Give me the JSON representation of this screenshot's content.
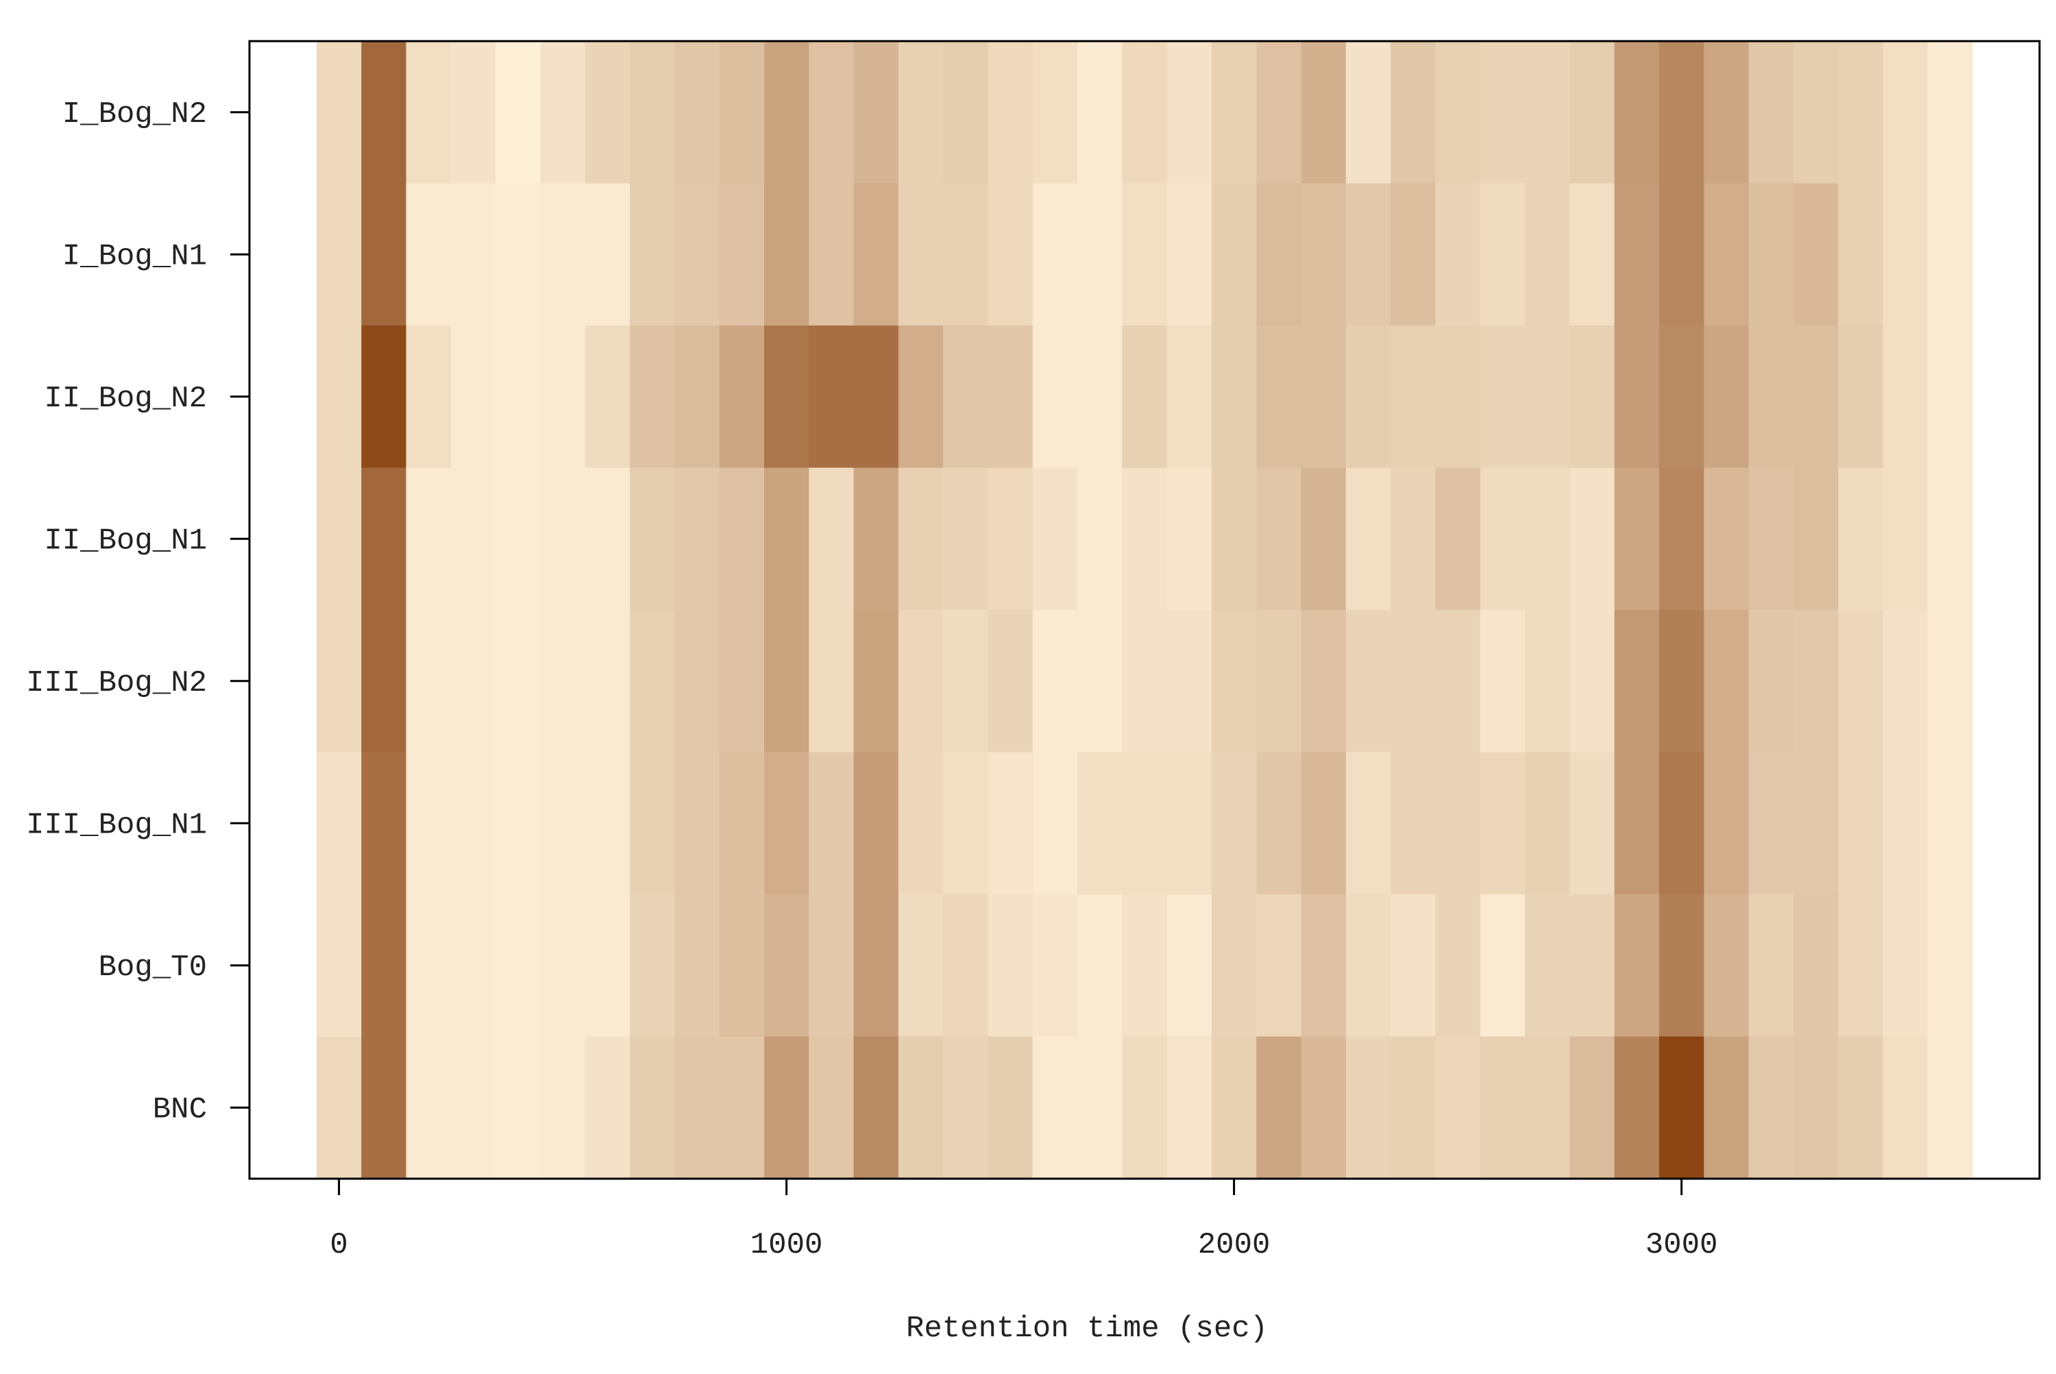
{
  "chart_data": {
    "type": "heatmap",
    "xlabel": "Retention time (sec)",
    "ylabel": "",
    "xlim": [
      -200,
      3800
    ],
    "x_ticks": [
      0,
      1000,
      2000,
      3000
    ],
    "x_tick_labels": [
      "0",
      "1000",
      "2000",
      "3000"
    ],
    "grid": false,
    "legend": "none",
    "bin_width": 100,
    "x_centers": [
      0,
      100,
      200,
      300,
      400,
      500,
      600,
      700,
      800,
      900,
      1000,
      1100,
      1200,
      1300,
      1400,
      1500,
      1600,
      1700,
      1800,
      1900,
      2000,
      2100,
      2200,
      2300,
      2400,
      2500,
      2600,
      2700,
      2800,
      2900,
      3000,
      3100,
      3200,
      3300,
      3400,
      3500,
      3600
    ],
    "rows": [
      "I_Bog_N2",
      "I_Bog_N1",
      "II_Bog_N2",
      "II_Bog_N1",
      "III_Bog_N2",
      "III_Bog_N1",
      "Bog_T0",
      "BNC"
    ],
    "color_low": "#fff3db",
    "color_high": "#8b4513",
    "values": [
      [
        0.15,
        0.8,
        0.12,
        0.1,
        0.02,
        0.1,
        0.18,
        0.22,
        0.26,
        0.3,
        0.46,
        0.28,
        0.36,
        0.2,
        0.22,
        0.15,
        0.12,
        0.05,
        0.15,
        0.1,
        0.2,
        0.28,
        0.38,
        0.1,
        0.26,
        0.2,
        0.18,
        0.18,
        0.22,
        0.52,
        0.62,
        0.44,
        0.26,
        0.22,
        0.2,
        0.12,
        0.05
      ],
      [
        0.15,
        0.8,
        0.05,
        0.05,
        0.03,
        0.05,
        0.05,
        0.22,
        0.24,
        0.28,
        0.46,
        0.28,
        0.4,
        0.2,
        0.2,
        0.15,
        0.05,
        0.05,
        0.12,
        0.08,
        0.22,
        0.32,
        0.3,
        0.24,
        0.3,
        0.18,
        0.14,
        0.18,
        0.12,
        0.5,
        0.62,
        0.4,
        0.3,
        0.34,
        0.2,
        0.12,
        0.05
      ],
      [
        0.15,
        0.97,
        0.12,
        0.05,
        0.03,
        0.05,
        0.14,
        0.28,
        0.32,
        0.44,
        0.72,
        0.76,
        0.76,
        0.4,
        0.26,
        0.26,
        0.05,
        0.05,
        0.2,
        0.12,
        0.22,
        0.3,
        0.3,
        0.22,
        0.2,
        0.2,
        0.18,
        0.18,
        0.2,
        0.5,
        0.6,
        0.44,
        0.3,
        0.3,
        0.22,
        0.12,
        0.05
      ],
      [
        0.15,
        0.8,
        0.05,
        0.05,
        0.03,
        0.05,
        0.05,
        0.22,
        0.24,
        0.28,
        0.46,
        0.14,
        0.44,
        0.2,
        0.18,
        0.15,
        0.1,
        0.05,
        0.1,
        0.08,
        0.22,
        0.26,
        0.36,
        0.12,
        0.18,
        0.28,
        0.14,
        0.14,
        0.1,
        0.44,
        0.62,
        0.34,
        0.28,
        0.3,
        0.14,
        0.12,
        0.05
      ],
      [
        0.15,
        0.8,
        0.05,
        0.05,
        0.03,
        0.05,
        0.05,
        0.2,
        0.24,
        0.28,
        0.46,
        0.14,
        0.46,
        0.16,
        0.14,
        0.18,
        0.05,
        0.05,
        0.1,
        0.1,
        0.2,
        0.22,
        0.28,
        0.18,
        0.18,
        0.18,
        0.08,
        0.14,
        0.1,
        0.52,
        0.66,
        0.4,
        0.26,
        0.24,
        0.16,
        0.1,
        0.05
      ],
      [
        0.1,
        0.76,
        0.05,
        0.05,
        0.03,
        0.05,
        0.05,
        0.2,
        0.24,
        0.3,
        0.4,
        0.24,
        0.5,
        0.16,
        0.12,
        0.08,
        0.05,
        0.12,
        0.12,
        0.12,
        0.18,
        0.26,
        0.34,
        0.12,
        0.18,
        0.18,
        0.16,
        0.2,
        0.14,
        0.52,
        0.7,
        0.4,
        0.24,
        0.24,
        0.16,
        0.1,
        0.05
      ],
      [
        0.1,
        0.76,
        0.05,
        0.05,
        0.03,
        0.05,
        0.05,
        0.18,
        0.24,
        0.3,
        0.36,
        0.24,
        0.5,
        0.14,
        0.16,
        0.1,
        0.08,
        0.05,
        0.1,
        0.05,
        0.18,
        0.16,
        0.28,
        0.14,
        0.1,
        0.18,
        0.05,
        0.18,
        0.18,
        0.44,
        0.66,
        0.36,
        0.2,
        0.26,
        0.16,
        0.1,
        0.05
      ],
      [
        0.15,
        0.76,
        0.05,
        0.05,
        0.03,
        0.05,
        0.1,
        0.22,
        0.26,
        0.26,
        0.5,
        0.26,
        0.6,
        0.22,
        0.18,
        0.22,
        0.05,
        0.05,
        0.14,
        0.08,
        0.2,
        0.44,
        0.34,
        0.18,
        0.2,
        0.16,
        0.2,
        0.2,
        0.32,
        0.64,
        1.0,
        0.46,
        0.24,
        0.26,
        0.22,
        0.12,
        0.05
      ]
    ]
  }
}
